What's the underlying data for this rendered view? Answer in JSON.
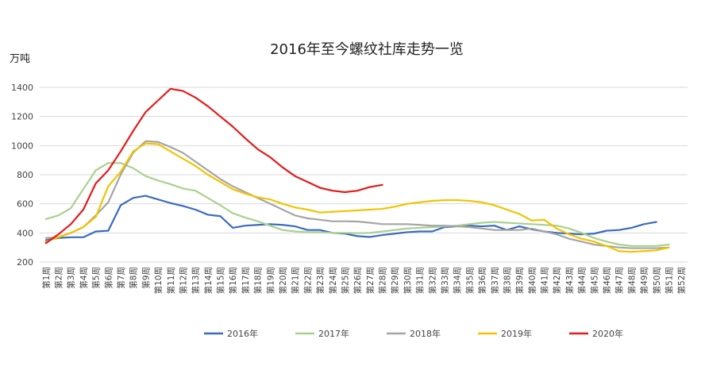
{
  "chart_data": {
    "type": "line",
    "title": "2016年至今螺纹社库走势一览",
    "ylabel": "万吨",
    "xlabel": "",
    "ylim": [
      200,
      1400
    ],
    "yticks": [
      200,
      400,
      600,
      800,
      1000,
      1200,
      1400
    ],
    "grid": "horizontal",
    "legend_position": "bottom",
    "categories": [
      "第1周",
      "第2周",
      "第3周",
      "第4周",
      "第5周",
      "第6周",
      "第7周",
      "第8周",
      "第9周",
      "第10周",
      "第11周",
      "第12周",
      "第13周",
      "第14周",
      "第15周",
      "第16周",
      "第17周",
      "第18周",
      "第19周",
      "第20周",
      "第21周",
      "第22周",
      "第23周",
      "第24周",
      "第25周",
      "第26周",
      "第27周",
      "第28周",
      "第29周",
      "第30周",
      "第31周",
      "第32周",
      "第33周",
      "第34周",
      "第35周",
      "第36周",
      "第37周",
      "第38周",
      "第39周",
      "第40周",
      "第41周",
      "第42周",
      "第43周",
      "第44周",
      "第45周",
      "第46周",
      "第47周",
      "第48周",
      "第49周",
      "第50周",
      "第51周",
      "第52周"
    ],
    "series": [
      {
        "name": "2016年",
        "color": "#3a6bbf",
        "values": [
          350,
          365,
          370,
          370,
          410,
          415,
          590,
          640,
          655,
          630,
          605,
          585,
          560,
          525,
          515,
          435,
          450,
          455,
          460,
          455,
          445,
          420,
          420,
          400,
          395,
          378,
          372,
          385,
          395,
          405,
          410,
          410,
          440,
          445,
          450,
          445,
          450,
          420,
          445,
          425,
          410,
          400,
          395,
          390,
          395,
          415,
          420,
          435,
          460,
          475,
          null,
          null
        ]
      },
      {
        "name": "2017年",
        "color": "#a9d18e",
        "values": [
          495,
          520,
          570,
          700,
          830,
          880,
          880,
          845,
          790,
          760,
          735,
          705,
          690,
          640,
          590,
          535,
          505,
          480,
          450,
          420,
          410,
          405,
          405,
          400,
          400,
          398,
          400,
          410,
          420,
          430,
          435,
          440,
          445,
          450,
          460,
          470,
          475,
          470,
          465,
          460,
          455,
          450,
          430,
          400,
          365,
          340,
          320,
          310,
          310,
          310,
          320,
          null
        ]
      },
      {
        "name": "2018年",
        "color": "#a5a5a5",
        "values": [
          365,
          370,
          400,
          440,
          520,
          610,
          800,
          950,
          1030,
          1025,
          990,
          950,
          890,
          830,
          770,
          720,
          680,
          640,
          600,
          560,
          520,
          500,
          490,
          480,
          480,
          478,
          470,
          460,
          460,
          460,
          455,
          450,
          450,
          445,
          440,
          430,
          420,
          420,
          420,
          430,
          410,
          390,
          360,
          340,
          320,
          310,
          300,
          295,
          295,
          295,
          300,
          null
        ]
      },
      {
        "name": "2019年",
        "color": "#f2c400",
        "values": [
          340,
          370,
          400,
          440,
          510,
          720,
          820,
          960,
          1015,
          1010,
          960,
          910,
          860,
          800,
          750,
          700,
          670,
          645,
          630,
          600,
          575,
          560,
          540,
          545,
          550,
          555,
          560,
          565,
          580,
          600,
          610,
          620,
          625,
          625,
          620,
          610,
          590,
          560,
          530,
          485,
          490,
          430,
          390,
          360,
          340,
          310,
          275,
          270,
          275,
          280,
          300,
          null
        ]
      },
      {
        "name": "2020年",
        "color": "#e41a1c",
        "values": [
          330,
          390,
          460,
          560,
          740,
          830,
          960,
          1100,
          1230,
          1310,
          1390,
          1375,
          1330,
          1270,
          1200,
          1130,
          1050,
          975,
          920,
          850,
          790,
          750,
          710,
          690,
          680,
          690,
          715,
          730,
          null,
          null,
          null,
          null,
          null,
          null,
          null,
          null,
          null,
          null,
          null,
          null,
          null,
          null,
          null,
          null,
          null,
          null,
          null,
          null,
          null,
          null,
          null,
          null
        ]
      }
    ]
  }
}
